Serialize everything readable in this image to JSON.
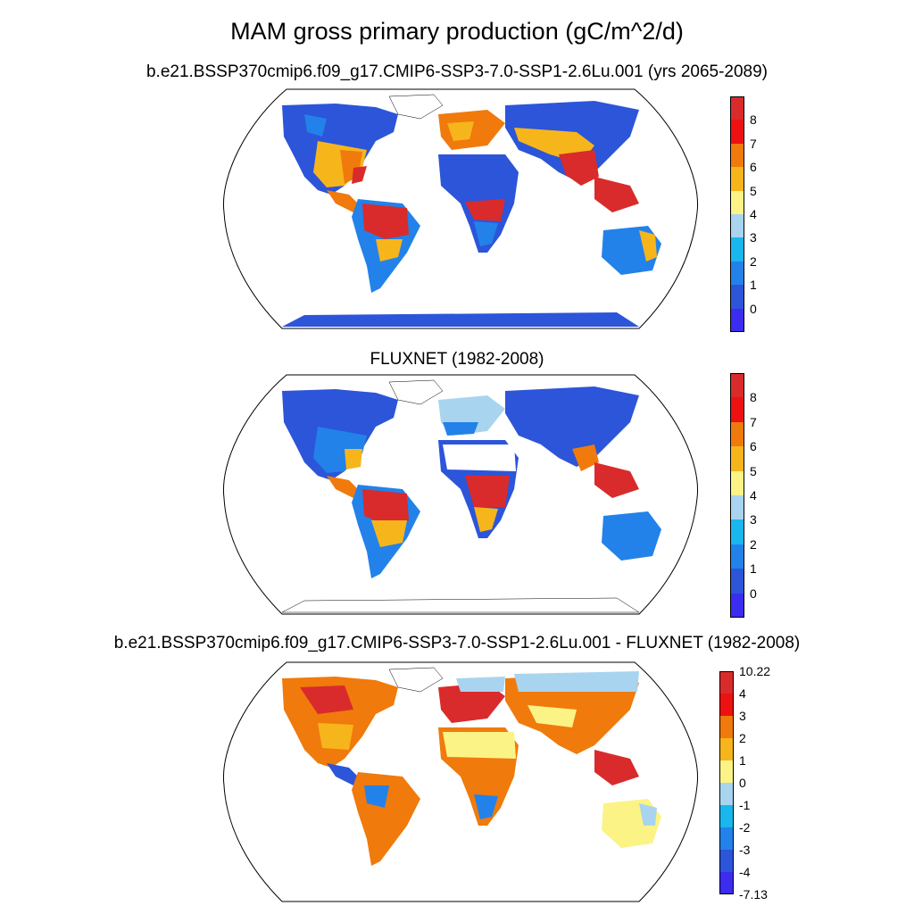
{
  "title": "MAM gross primary production (gC/m^2/d)",
  "panels": [
    {
      "title": "b.e21.BSSP370cmip6.f09_g17.CMIP6-SSP3-7.0-SSP1-2.6Lu.001 (yrs 2065-2089)",
      "colorbar": {
        "labels": [
          "8",
          "7",
          "6",
          "5",
          "4",
          "3",
          "2",
          "1",
          "0"
        ],
        "colors": [
          "#d92b2b",
          "#ee1111",
          "#f07a0c",
          "#f7b51c",
          "#fbf386",
          "#a9d4ef",
          "#19b7ee",
          "#2282ea",
          "#2c55d9",
          "#3b2cf0"
        ]
      }
    },
    {
      "title": "FLUXNET (1982-2008)",
      "colorbar": {
        "labels": [
          "8",
          "7",
          "6",
          "5",
          "4",
          "3",
          "2",
          "1",
          "0"
        ],
        "colors": [
          "#d92b2b",
          "#ee1111",
          "#f07a0c",
          "#f7b51c",
          "#fbf386",
          "#a9d4ef",
          "#19b7ee",
          "#2282ea",
          "#2c55d9",
          "#3b2cf0"
        ]
      }
    },
    {
      "title": "b.e21.BSSP370cmip6.f09_g17.CMIP6-SSP3-7.0-SSP1-2.6Lu.001 - FLUXNET (1982-2008)",
      "colorbar": {
        "labels": [
          "10.22",
          "4",
          "3",
          "2",
          "1",
          "0",
          "-1",
          "-2",
          "-3",
          "-4",
          "-7.13"
        ],
        "colors": [
          "#d92b2b",
          "#ee1111",
          "#f07a0c",
          "#f7b51c",
          "#fbf386",
          "#a9d4ef",
          "#19b7ee",
          "#2282ea",
          "#2c55d9",
          "#3b2cf0"
        ]
      }
    }
  ]
}
